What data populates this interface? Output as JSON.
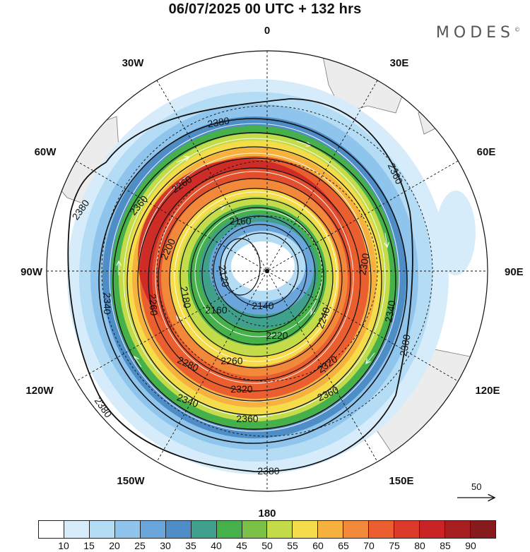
{
  "title": "06/07/2025  00 UTC  + 132 hrs",
  "brand": "MODES",
  "brand_mark": "©",
  "longitudes": {
    "top": "0",
    "bottom": "180",
    "left": "90W",
    "right": "90E",
    "tl1": "30W",
    "tl2": "60W",
    "bl1": "120W",
    "bl2": "150W",
    "tr1": "30E",
    "tr2": "60E",
    "br1": "120E",
    "br2": "150E"
  },
  "contours": {
    "c2380a": "2380",
    "c2380b": "2380",
    "c2380c": "2380",
    "c2380d": "2380",
    "c2380e": "2380",
    "c2360a": "2360",
    "c2360b": "2360",
    "c2360c": "2360",
    "c2360d": "2360",
    "c2340a": "2340",
    "c2340b": "2340",
    "c2340c": "2340",
    "c2320a": "2320",
    "c2320b": "2320",
    "c2300": "2300",
    "c2280": "2280",
    "c2260a": "2260",
    "c2260b": "2260",
    "c2260c": "2260",
    "c2240": "2240",
    "c2220": "2220",
    "c2200": "2200",
    "c2180": "2180",
    "c2160a": "2160",
    "c2160b": "2160",
    "c2140": "2140",
    "c2120": "2120"
  },
  "reference_vector": "50",
  "colorbar": {
    "colors": [
      "#ffffff",
      "#d6ecfa",
      "#b4dcf5",
      "#8fc5ec",
      "#6aa6dc",
      "#4f8dc7",
      "#3fa08c",
      "#46b04a",
      "#7cc147",
      "#c4dc4a",
      "#f4dc4a",
      "#f6b13f",
      "#f2883a",
      "#ea5e2f",
      "#dc3a2b",
      "#c92326",
      "#a81f22",
      "#871a1d"
    ],
    "labels": [
      "10",
      "15",
      "20",
      "25",
      "30",
      "35",
      "40",
      "45",
      "50",
      "55",
      "60",
      "65",
      "70",
      "75",
      "80",
      "85",
      "90"
    ]
  }
}
